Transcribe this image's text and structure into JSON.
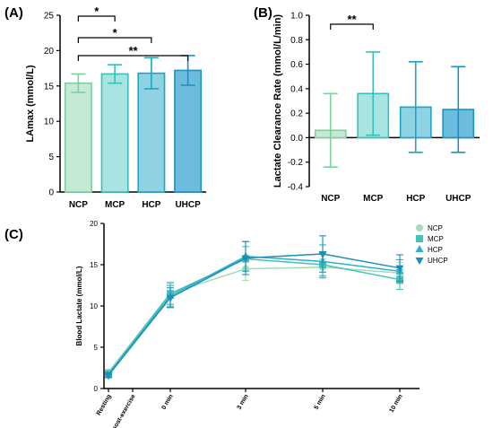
{
  "chart_data": [
    {
      "type": "bar",
      "panel_label": "(A)",
      "ylabel": "LAmax (mmol/L)",
      "categories": [
        "NCP",
        "MCP",
        "HCP",
        "UHCP"
      ],
      "values": [
        15.4,
        16.7,
        16.8,
        17.2
      ],
      "errors": [
        1.3,
        1.3,
        2.2,
        2.1
      ],
      "ylim": [
        0,
        25
      ],
      "yticks": [
        "0",
        "5",
        "10",
        "15",
        "20",
        "25"
      ],
      "colors": [
        "#c4e9d4",
        "#a9e5e0",
        "#8fd2e3",
        "#6cbddd"
      ],
      "edge_colors": [
        "#7fcfa0",
        "#35c0bc",
        "#1ea5c6",
        "#1f8fc0"
      ],
      "significance": [
        {
          "from": "NCP",
          "to": "MCP",
          "label": "*"
        },
        {
          "from": "NCP",
          "to": "HCP",
          "label": "*"
        },
        {
          "from": "NCP",
          "to": "UHCP",
          "label": "**"
        }
      ]
    },
    {
      "type": "bar",
      "panel_label": "(B)",
      "ylabel": "Lactate Clearance Rate (mmol/L/min)",
      "categories": [
        "NCP",
        "MCP",
        "HCP",
        "UHCP"
      ],
      "values": [
        0.06,
        0.36,
        0.25,
        0.23
      ],
      "errors": [
        0.3,
        0.34,
        0.37,
        0.35
      ],
      "ylim": [
        -0.4,
        1.0
      ],
      "yticks": [
        "-0.4",
        "-0.2",
        "0.0",
        "0.2",
        "0.4",
        "0.6",
        "0.8",
        "1.0"
      ],
      "colors": [
        "#c4e9d4",
        "#a9e5e0",
        "#8fd2e3",
        "#6cbddd"
      ],
      "edge_colors": [
        "#7fcfa0",
        "#35c0bc",
        "#1ea5c6",
        "#1f8fc0"
      ],
      "significance": [
        {
          "from": "NCP",
          "to": "MCP",
          "label": "**"
        }
      ]
    },
    {
      "type": "line",
      "panel_label": "(C)",
      "ylabel": "Blood Lactate (mmol/L)",
      "categories": [
        "Resting",
        "post-exercise",
        "0 min",
        "3 min",
        "5 min",
        "10 min"
      ],
      "ylim": [
        0,
        20
      ],
      "yticks": [
        "0",
        "5",
        "10",
        "15",
        "20"
      ],
      "legend_position": "top-right",
      "series": [
        {
          "name": "NCP",
          "marker": "circle",
          "color": "#a6dcbb",
          "values": [
            2.0,
            null,
            11.5,
            14.5,
            14.7,
            14.0
          ],
          "errors": [
            0.3,
            null,
            1.4,
            1.4,
            1.0,
            1.3
          ]
        },
        {
          "name": "MCP",
          "marker": "square",
          "color": "#45c1b6",
          "values": [
            1.8,
            null,
            11.5,
            15.7,
            15.0,
            13.2
          ],
          "errors": [
            0.3,
            null,
            1.3,
            1.5,
            1.4,
            1.2
          ]
        },
        {
          "name": "HCP",
          "marker": "triangle-up",
          "color": "#2eb0cc",
          "values": [
            1.7,
            null,
            11.2,
            16.0,
            15.4,
            14.2
          ],
          "errors": [
            0.3,
            null,
            1.3,
            1.8,
            2.0,
            1.4
          ]
        },
        {
          "name": "UHCP",
          "marker": "triangle-down",
          "color": "#1d8fb8",
          "values": [
            1.6,
            null,
            11.0,
            15.8,
            16.3,
            14.6
          ],
          "errors": [
            0.3,
            null,
            1.2,
            2.0,
            2.2,
            1.6
          ]
        }
      ]
    }
  ]
}
